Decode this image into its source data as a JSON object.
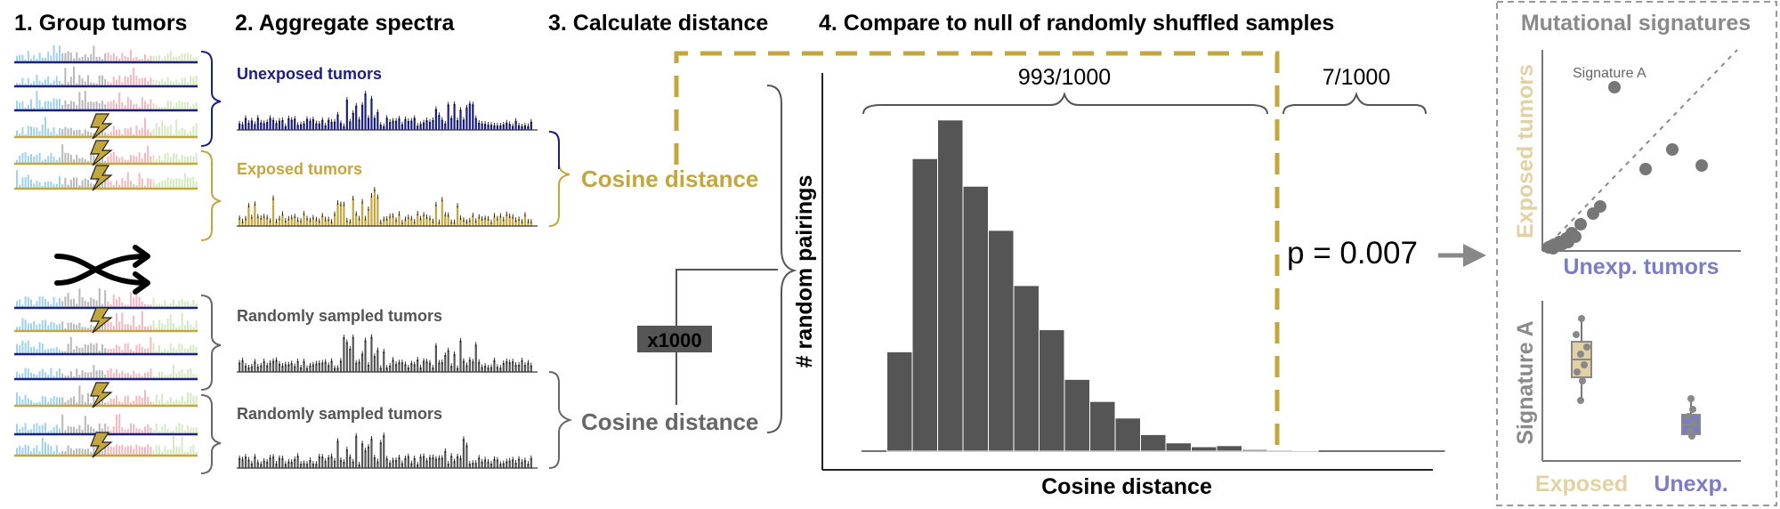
{
  "steps": {
    "s1": "1. Group tumors",
    "s2": "2. Aggregate spectra",
    "s3": "3. Calculate distance",
    "s4": "4. Compare to null of randomly shuffled samples"
  },
  "spectra_labels": {
    "unexposed": "Unexposed tumors",
    "exposed": "Exposed tumors",
    "random1": "Randomly sampled tumors",
    "random2": "Randomly sampled tumors"
  },
  "distance": {
    "cosine_top": "Cosine distance",
    "cosine_bottom": "Cosine distance",
    "repeat": "x1000"
  },
  "result": {
    "count_below": "993/1000",
    "count_above": "7/1000",
    "p_value": "p = 0.007"
  },
  "panel": {
    "title": "Mutational signatures",
    "ylabel_top": "Exposed tumors",
    "xlabel_top": "Unexp. tumors",
    "point_label": "Signature A",
    "ylabel_bottom": "Signature A",
    "x_exposed": "Exposed",
    "x_unexposed": "Unexp."
  },
  "colors": {
    "navy": "#1a1f80",
    "gold": "#c4a73c",
    "dark": "#555555",
    "gray": "#8a8a8a",
    "lightgold": "#e2d1a2",
    "lavender": "#7c7cc4"
  },
  "chart_data": {
    "type": "bar",
    "title": "Compare to null of randomly shuffled samples",
    "xlabel": "Cosine distance",
    "ylabel": "# random pairings",
    "bin_index": [
      1,
      2,
      3,
      4,
      5,
      6,
      7,
      8,
      9,
      10,
      11,
      12,
      13,
      14,
      15,
      16,
      17,
      18,
      19,
      20,
      21,
      22,
      23
    ],
    "values": [
      0,
      18,
      53,
      60,
      48,
      40,
      30,
      22,
      13,
      9,
      6,
      3,
      1.5,
      0.8,
      1,
      0.3,
      0.2,
      0.1,
      0,
      0,
      0,
      0,
      0
    ],
    "ylim": [
      0,
      64
    ],
    "observed_bin": 16,
    "annotations": [
      "993/1000",
      "7/1000",
      "p = 0.007"
    ]
  }
}
